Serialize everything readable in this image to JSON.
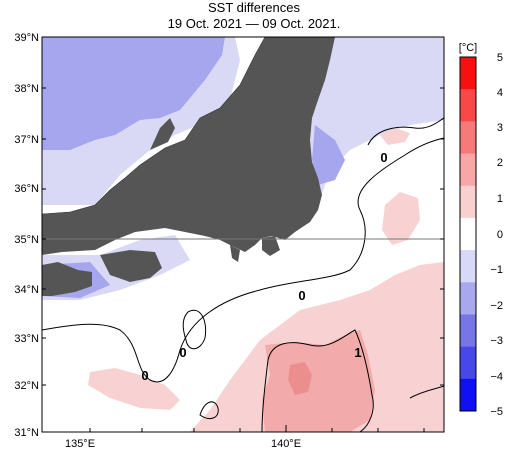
{
  "title": "SST differences",
  "period": "19 Oct. 2021 — 09 Oct. 2021.",
  "map": {
    "lat_labels": [
      "39°N",
      "38°N",
      "37°N",
      "36°N",
      "35°N",
      "34°N",
      "33°N",
      "32°N",
      "31°N"
    ],
    "lon_labels": [
      "135°E",
      "140°E"
    ],
    "contour_labels": [
      "0",
      "0",
      "0",
      "0",
      "1"
    ]
  },
  "colorbar": {
    "unit": "[°C]",
    "tick_labels": [
      "5",
      "4",
      "3",
      "2",
      "1",
      "0",
      "−1",
      "−2",
      "−3",
      "−4",
      "−5"
    ],
    "colors_top_to_bottom": [
      "#f81010",
      "#f84848",
      "#f77979",
      "#f8a6a6",
      "#f8d0d0",
      "#ffffff",
      "#d8d8f8",
      "#a8a8ef",
      "#7676e6",
      "#4848e8",
      "#1010f4"
    ]
  },
  "colors": {
    "land": "#555555",
    "sea_neutral": "#ffffff",
    "warm_light": "#f8d2d2",
    "warm_mid": "#f3aaaa",
    "cool_light": "#d9d9f6",
    "cool_mid": "#a6a6ee"
  }
}
